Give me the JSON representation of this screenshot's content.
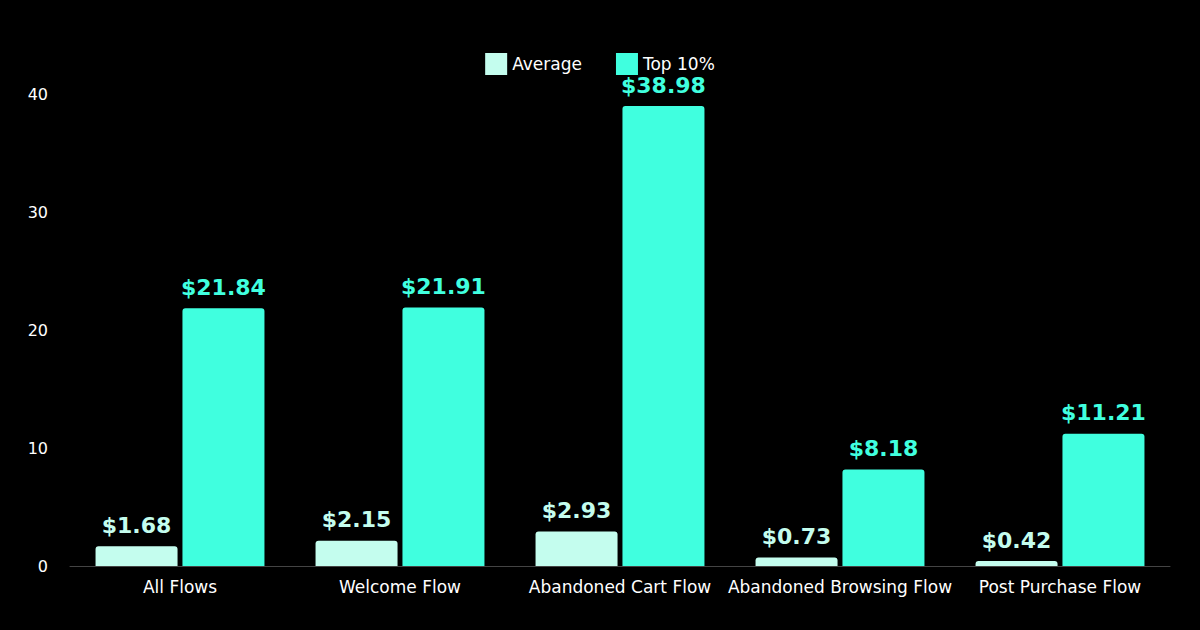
{
  "chart_data": {
    "type": "bar",
    "categories": [
      "All Flows",
      "Welcome Flow",
      "Abandoned Cart Flow",
      "Abandoned Browsing Flow",
      "Post Purchase Flow"
    ],
    "series": [
      {
        "name": "Average",
        "color": "#c4fdee",
        "values": [
          1.68,
          2.15,
          2.93,
          0.73,
          0.42
        ],
        "value_labels": [
          "$1.68",
          "$2.15",
          "$2.93",
          "$0.73",
          "$0.42"
        ]
      },
      {
        "name": "Top 10%",
        "color": "#40ffdf",
        "values": [
          21.84,
          21.91,
          38.98,
          8.18,
          11.21
        ],
        "value_labels": [
          "$21.84",
          "$21.91",
          "$38.98",
          "$8.18",
          "$11.21"
        ]
      }
    ],
    "ylim": [
      0,
      40
    ],
    "yticks": [
      0,
      10,
      20,
      30,
      40
    ],
    "grid": false,
    "legend": "top",
    "data_labels": true
  }
}
